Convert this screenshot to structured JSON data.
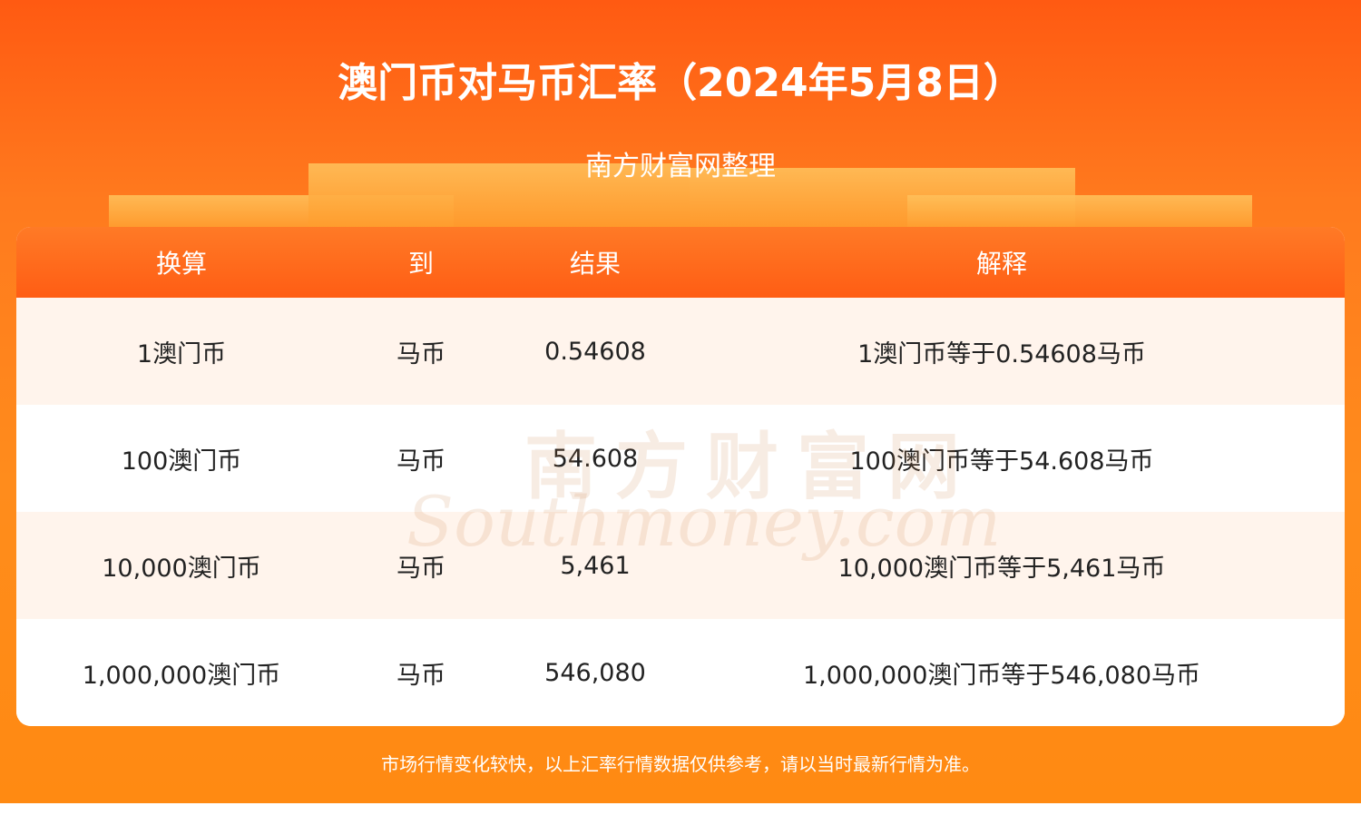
{
  "header": {
    "title": "澳门币对马币汇率（2024年5月8日）",
    "subtitle": "南方财富网整理"
  },
  "table": {
    "headers": [
      "换算",
      "到",
      "结果",
      "解释"
    ],
    "rows": [
      [
        "1澳门币",
        "马币",
        "0.54608",
        "1澳门币等于0.54608马币"
      ],
      [
        "100澳门币",
        "马币",
        "54.608",
        "100澳门币等于54.608马币"
      ],
      [
        "10,000澳门币",
        "马币",
        "5,461",
        "10,000澳门币等于5,461马币"
      ],
      [
        "1,000,000澳门币",
        "马币",
        "546,080",
        "1,000,000澳门币等于546,080马币"
      ]
    ]
  },
  "watermark": {
    "cn": "南方财富网",
    "en": "Southmoney.com"
  },
  "footer": {
    "note": "市场行情变化较快，以上汇率行情数据仅供参考，请以当时最新行情为准。"
  }
}
